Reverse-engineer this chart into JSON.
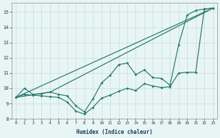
{
  "xlabel": "Humidex (Indice chaleur)",
  "background_color": "#e8f5f5",
  "grid_color": "#c8dada",
  "line_color": "#2a7a6e",
  "line1_x": [
    0,
    1,
    2,
    3,
    4,
    5,
    6,
    7,
    8,
    9,
    10,
    11,
    12,
    13,
    14,
    15,
    16,
    17,
    18,
    19,
    20,
    21,
    22,
    23
  ],
  "line1_y": [
    9.4,
    10.0,
    9.6,
    9.65,
    9.75,
    9.6,
    9.5,
    8.85,
    8.45,
    9.3,
    10.35,
    10.85,
    11.55,
    11.65,
    10.9,
    11.2,
    10.7,
    10.65,
    10.2,
    12.85,
    14.8,
    15.1,
    15.2,
    15.25
  ],
  "line2_x": [
    0,
    1,
    2,
    3,
    4,
    5,
    6,
    7,
    8,
    9,
    10,
    11,
    12,
    13,
    14,
    15,
    16,
    17,
    18,
    19,
    20,
    21,
    22,
    23
  ],
  "line2_y": [
    9.4,
    9.6,
    9.55,
    9.5,
    9.45,
    9.4,
    9.1,
    8.5,
    8.3,
    8.75,
    9.35,
    9.55,
    9.8,
    10.0,
    9.85,
    10.3,
    10.15,
    10.05,
    10.1,
    11.0,
    11.05,
    11.05,
    15.2,
    15.25
  ],
  "line3_x": [
    0,
    23
  ],
  "line3_y": [
    9.4,
    15.25
  ],
  "line4_x": [
    0,
    4,
    23
  ],
  "line4_y": [
    9.4,
    9.75,
    15.25
  ],
  "xlim": [
    -0.5,
    23.5
  ],
  "ylim": [
    8.0,
    15.6
  ],
  "yticks": [
    8,
    9,
    10,
    11,
    12,
    13,
    14,
    15
  ],
  "xticks": [
    0,
    1,
    2,
    3,
    4,
    5,
    6,
    7,
    8,
    9,
    10,
    11,
    12,
    13,
    14,
    15,
    16,
    17,
    18,
    19,
    20,
    21,
    22,
    23
  ]
}
